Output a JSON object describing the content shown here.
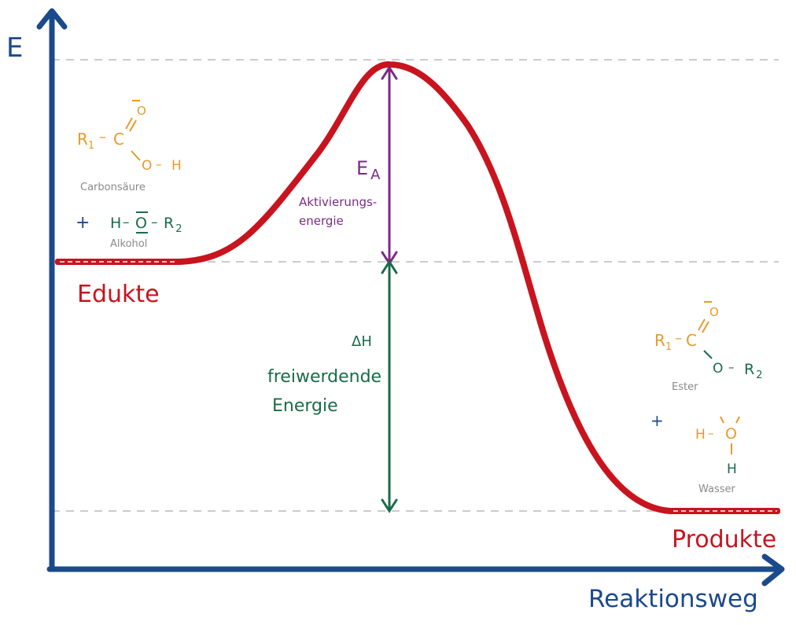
{
  "axes": {
    "y_label": "E",
    "x_label": "Reaktionsweg"
  },
  "levels": {
    "educts_label": "Edukte",
    "products_label": "Produkte"
  },
  "activation": {
    "symbol": "E",
    "symbol_sub": "A",
    "label_line1": "Aktivierungs-",
    "label_line2": "energie"
  },
  "enthalpy": {
    "symbol": "ΔH",
    "label_line1": "freiwerdende",
    "label_line2": "Energie"
  },
  "educts": {
    "acid": {
      "r": "R",
      "r_sub": "1",
      "dash": "–",
      "c": "C",
      "o_top": "O",
      "o_bottom": "O",
      "h": "H",
      "name": "Carbonsäure"
    },
    "plus": "+",
    "alcohol": {
      "formula_h": "H",
      "formula_o": "O",
      "formula_r": "R",
      "formula_r_sub": "2",
      "dash": "–",
      "name": "Alkohol"
    }
  },
  "products": {
    "ester": {
      "r": "R",
      "r_sub": "1",
      "c": "C",
      "o_top": "O",
      "o_bottom": "O",
      "r2": "R",
      "r2_sub": "2",
      "dash": "–",
      "name": "Ester"
    },
    "plus": "+",
    "water": {
      "h_left": "H",
      "o": "O",
      "h_bottom": "H",
      "dash": "–",
      "name": "Wasser"
    }
  },
  "colors": {
    "axis": "#1b4a8c",
    "curve": "#c8141e",
    "activation": "#7a2a86",
    "enthalpy": "#1a6b4a",
    "molecule_orange": "#e89a2c",
    "molecule_green": "#1a6b4a",
    "name_gray": "#8a8a8a",
    "guide": "#cccccc"
  }
}
